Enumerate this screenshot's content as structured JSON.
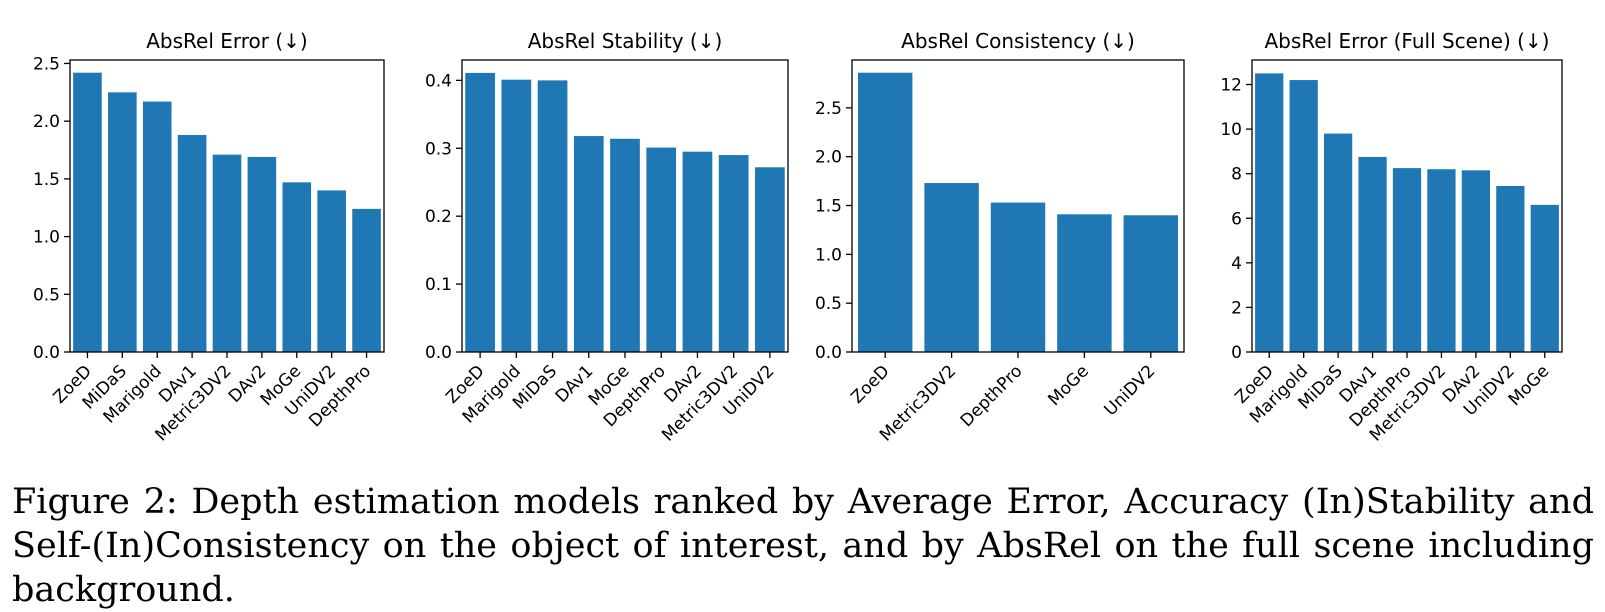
{
  "chart_data": [
    {
      "type": "bar",
      "title": "AbsRel Error (↓)",
      "categories": [
        "ZoeD",
        "MiDaS",
        "Marigold",
        "DAv1",
        "Metric3DV2",
        "DAv2",
        "MoGe",
        "UniDV2",
        "DepthPro"
      ],
      "values": [
        2.42,
        2.25,
        2.17,
        1.88,
        1.71,
        1.69,
        1.47,
        1.4,
        1.24
      ],
      "ylim": [
        0,
        2.53
      ],
      "yticks": [
        "0.0",
        "0.5",
        "1.0",
        "1.5",
        "2.0",
        "2.5"
      ],
      "ytick_values": [
        0,
        0.5,
        1.0,
        1.5,
        2.0,
        2.5
      ],
      "color": "#1f77b4"
    },
    {
      "type": "bar",
      "title": "AbsRel Stability (↓)",
      "categories": [
        "ZoeD",
        "Marigold",
        "MiDaS",
        "DAv1",
        "MoGe",
        "DepthPro",
        "DAv2",
        "Metric3DV2",
        "UniDV2"
      ],
      "values": [
        0.411,
        0.401,
        0.4,
        0.318,
        0.314,
        0.301,
        0.295,
        0.29,
        0.272
      ],
      "ylim": [
        0,
        0.43
      ],
      "yticks": [
        "0.0",
        "0.1",
        "0.2",
        "0.3",
        "0.4"
      ],
      "ytick_values": [
        0,
        0.1,
        0.2,
        0.3,
        0.4
      ],
      "color": "#1f77b4"
    },
    {
      "type": "bar",
      "title": "AbsRel Consistency (↓)",
      "categories": [
        "ZoeD",
        "Metric3DV2",
        "DepthPro",
        "MoGe",
        "UniDV2"
      ],
      "values": [
        2.86,
        1.73,
        1.53,
        1.41,
        1.4
      ],
      "ylim": [
        0,
        2.99
      ],
      "yticks": [
        "0.0",
        "0.5",
        "1.0",
        "1.5",
        "2.0",
        "2.5"
      ],
      "ytick_values": [
        0,
        0.5,
        1.0,
        1.5,
        2.0,
        2.5
      ],
      "color": "#1f77b4"
    },
    {
      "type": "bar",
      "title": "AbsRel Error (Full Scene) (↓)",
      "categories": [
        "ZoeD",
        "Marigold",
        "MiDaS",
        "DAv1",
        "DepthPro",
        "Metric3DV2",
        "DAv2",
        "UniDV2",
        "MoGe"
      ],
      "values": [
        12.5,
        12.2,
        9.8,
        8.75,
        8.25,
        8.2,
        8.15,
        7.45,
        6.6
      ],
      "ylim": [
        0,
        13.1
      ],
      "yticks": [
        "0",
        "2",
        "4",
        "6",
        "8",
        "10",
        "12"
      ],
      "ytick_values": [
        0,
        2,
        4,
        6,
        8,
        10,
        12
      ],
      "color": "#1f77b4"
    }
  ],
  "caption": "Figure 2: Depth estimation models ranked by Average Error, Accuracy (In)Stability and Self-(In)Consistency on the object of interest, and by AbsRel on the full scene including background."
}
